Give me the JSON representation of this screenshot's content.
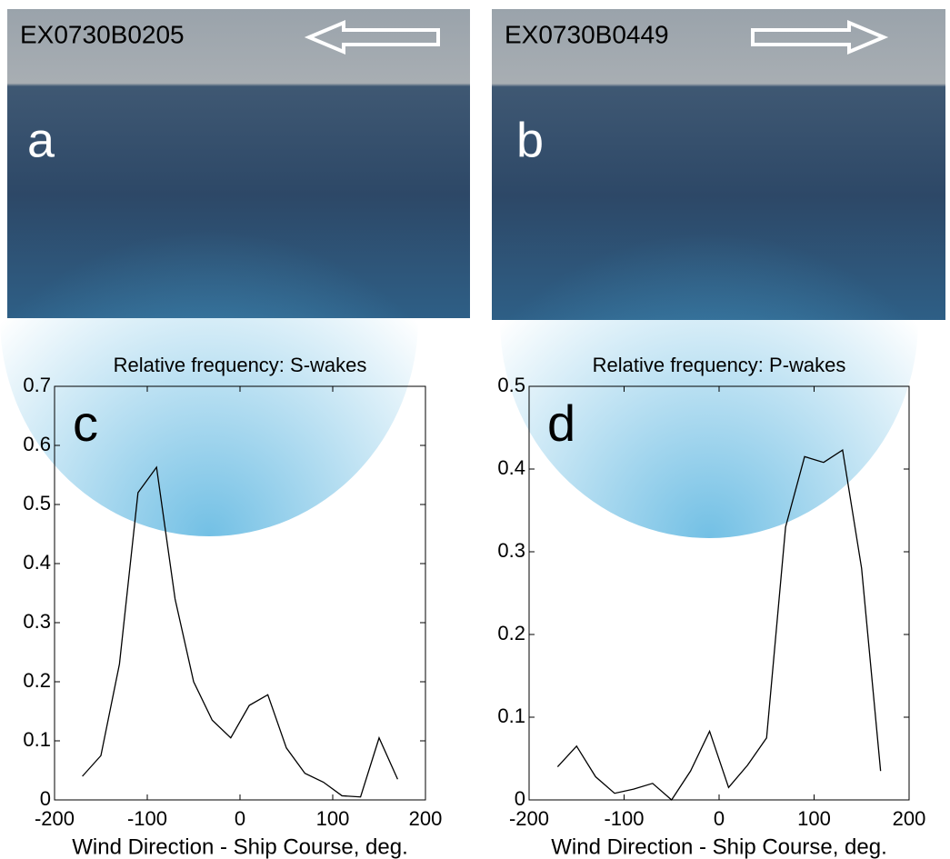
{
  "panels": [
    {
      "label": "EX0730B0205",
      "letter": "a"
    },
    {
      "label": "EX0730B0449",
      "letter": "b"
    }
  ],
  "chart_data": [
    {
      "type": "line",
      "title": "Relative frequency: S-wakes",
      "annotation": "c",
      "x_label": "Wind Direction - Ship Course, deg.",
      "x": [
        -170,
        -150,
        -130,
        -110,
        -90,
        -70,
        -50,
        -30,
        -10,
        10,
        30,
        50,
        70,
        90,
        110,
        130,
        150,
        170
      ],
      "values": [
        0.04,
        0.075,
        0.23,
        0.52,
        0.563,
        0.34,
        0.2,
        0.135,
        0.105,
        0.16,
        0.178,
        0.088,
        0.045,
        0.03,
        0.007,
        0.005,
        0.105,
        0.035
      ],
      "color": "#000000",
      "xlim": [
        -200,
        200
      ],
      "xticks": [
        -200,
        -100,
        0,
        100,
        200
      ],
      "ylim": [
        0,
        0.7
      ],
      "yticks": [
        0,
        0.1,
        0.2,
        0.3,
        0.4,
        0.5,
        0.6,
        0.7
      ]
    },
    {
      "type": "line",
      "title": "Relative frequency: P-wakes",
      "annotation": "d",
      "x_label": "Wind Direction - Ship Course, deg.",
      "x": [
        -170,
        -150,
        -130,
        -110,
        -90,
        -70,
        -50,
        -30,
        -10,
        10,
        30,
        50,
        70,
        90,
        110,
        130,
        150,
        170
      ],
      "values": [
        0.04,
        0.065,
        0.028,
        0.008,
        0.013,
        0.02,
        0.0,
        0.035,
        0.083,
        0.015,
        0.042,
        0.075,
        0.33,
        0.415,
        0.408,
        0.423,
        0.28,
        0.035
      ],
      "color": "#000000",
      "xlim": [
        -200,
        200
      ],
      "xticks": [
        -200,
        -100,
        0,
        100,
        200
      ],
      "ylim": [
        0,
        0.5
      ],
      "yticks": [
        0,
        0.1,
        0.2,
        0.3,
        0.4,
        0.5
      ]
    }
  ]
}
